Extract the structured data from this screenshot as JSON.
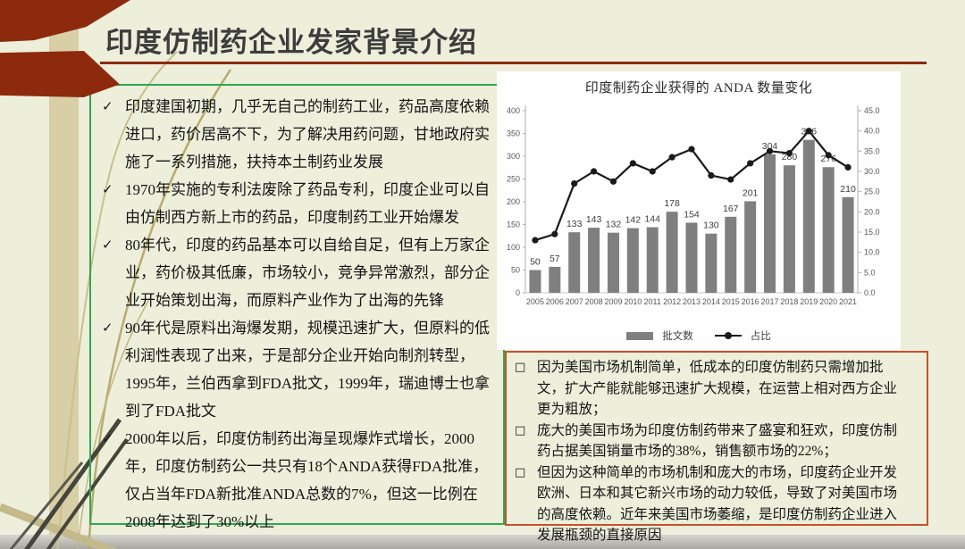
{
  "slide": {
    "title": "印度仿制药企业发家背景介绍"
  },
  "left_panel": {
    "bullet_char": "✓",
    "items": [
      "印度建国初期，几乎无自己的制药工业，药品高度依赖进口，药价居高不下，为了解决用药问题，甘地政府实施了一系列措施，扶持本土制药业发展",
      "1970年实施的专利法废除了药品专利，印度企业可以自由仿制西方新上市的药品，印度制药工业开始爆发",
      "80年代，印度的药品基本可以自给自足，但有上万家企业，药价极其低廉，市场较小，竞争异常激烈，部分企业开始策划出海，而原料产业作为了出海的先锋",
      "90年代是原料出海爆发期，规模迅速扩大，但原料的低利润性表现了出来，于是部分企业开始向制剂转型，1995年，兰伯西拿到FDA批文，1999年，瑞迪博士也拿到了FDA批文",
      "2000年以后，印度仿制药出海呈现爆炸式增长，2000年，印度仿制药公一共只有18个ANDA获得FDA批准，仅占当年FDA新批准ANDA总数的7%，但这一比例在2008年达到了30%以上"
    ]
  },
  "right_panel": {
    "bullet_char": "□",
    "items": [
      "因为美国市场机制简单，低成本的印度仿制药只需增加批文，扩大产能就能够迅速扩大规模，在运营上相对西方企业更为粗放；",
      "庞大的美国市场为印度仿制药带来了盛宴和狂欢，印度仿制药占据美国销量市场的38%，销售额市场的22%；",
      "但因为这种简单的市场机制和庞大的市场，印度药企业开发欧洲、日本和其它新兴市场的动力较低，导致了对美国市场的高度依赖。近年来美国市场萎缩，是印度仿制药企业进入发展瓶颈的直接原因"
    ]
  },
  "chart_data": {
    "type": "bar",
    "subtype": "bar-line-combo",
    "title": "印度制药企业获得的 ANDA 数量变化",
    "categories": [
      "2005",
      "2006",
      "2007",
      "2008",
      "2009",
      "2010",
      "2011",
      "2012",
      "2013",
      "2014",
      "2015",
      "2016",
      "2017",
      "2018",
      "2019",
      "2020",
      "2021"
    ],
    "series": [
      {
        "name": "批文数",
        "type": "bar",
        "axis": "left",
        "color": "#7f7f7f",
        "values": [
          50,
          57,
          133,
          143,
          132,
          142,
          144,
          178,
          154,
          130,
          167,
          201,
          304,
          280,
          336,
          276,
          210
        ]
      },
      {
        "name": "占比",
        "type": "line",
        "axis": "right",
        "color": "#1a1a1a",
        "values": [
          13,
          14.5,
          27,
          30,
          27.5,
          32,
          30,
          33.5,
          35.5,
          29,
          28,
          32,
          35,
          34.5,
          40,
          34,
          31
        ]
      }
    ],
    "left_axis": {
      "min": 0,
      "max": 400,
      "step": 50
    },
    "right_axis": {
      "min": 0,
      "max": 45,
      "step": 5,
      "decimals": 1
    },
    "grid": "off",
    "legend_position": "bottom",
    "xlabel": "",
    "ylabel": ""
  },
  "colors": {
    "slide_bg": "#edefdb",
    "band_tan": "#d9cfa6",
    "accent_red": "#8d2a0e",
    "box_green": "#2ea84e",
    "box_red": "#c8502e",
    "bar_gray": "#7f7f7f",
    "line_black": "#1a1a1a",
    "axis_gray": "#595959"
  }
}
